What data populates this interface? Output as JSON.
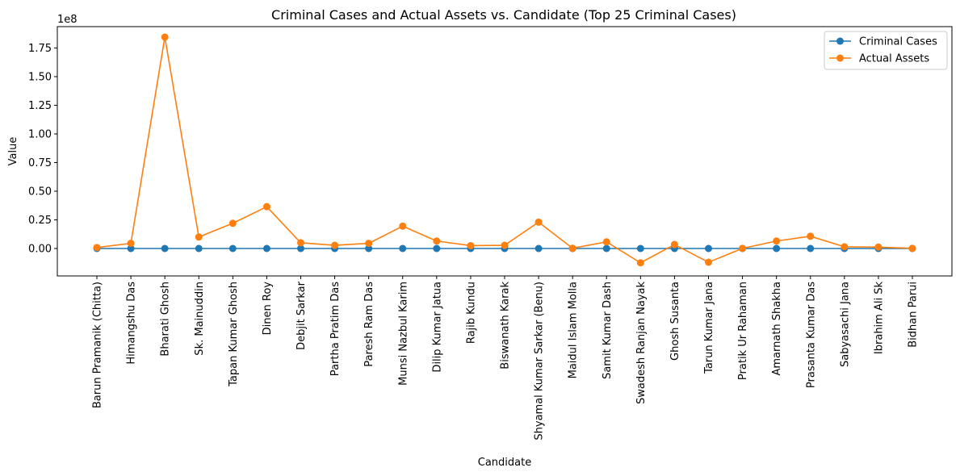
{
  "chart_data": {
    "type": "line",
    "title": "Criminal Cases and Actual Assets vs. Candidate (Top 25 Criminal Cases)",
    "xlabel": "Candidate",
    "ylabel": "Value",
    "y_offset_text": "1e8",
    "categories": [
      "Barun Pramanik (Chitta)",
      "Himangshu Das",
      "Bharati Ghosh",
      "Sk. Mainuddin",
      "Tapan Kumar Ghosh",
      "Dinen Roy",
      "Debjit Sarkar",
      "Partha Pratim Das",
      "Paresh Ram Das",
      "Munsi Nazbul Karim",
      "Dilip Kumar Jatua",
      "Rajib Kundu",
      "Biswanath Karak",
      "Shyamal Kumar Sarkar (Benu)",
      "Maidul Islam Molla",
      "Samit Kumar Dash",
      "Swadesh Ranjan Nayak",
      "Ghosh Susanta",
      "Tarun Kumar Jana",
      "Pratik Ur Rahaman",
      "Amarnath Shakha",
      "Prasanta Kumar Das",
      "Sabyasachi Jana",
      "Ibrahim Ali Sk",
      "Bidhan Parui"
    ],
    "series": [
      {
        "name": "Criminal Cases",
        "color": "#1f77b4",
        "values": [
          0,
          0,
          0,
          0,
          0,
          0,
          0,
          0,
          0,
          0,
          0,
          0,
          0,
          0,
          0,
          0,
          0,
          0,
          0,
          0,
          0,
          0,
          0,
          0,
          0
        ]
      },
      {
        "name": "Actual Assets",
        "color": "#ff7f0e",
        "values": [
          800000,
          4500000,
          184500000,
          10000000,
          22000000,
          36500000,
          5000000,
          2800000,
          4500000,
          19500000,
          6500000,
          2500000,
          2800000,
          23000000,
          200000,
          5800000,
          -12500000,
          3500000,
          -12000000,
          100000,
          6500000,
          10700000,
          1500000,
          1200000,
          100000
        ]
      }
    ],
    "yticks": [
      0,
      25000000,
      50000000,
      75000000,
      100000000,
      125000000,
      150000000,
      175000000
    ],
    "ytick_labels": [
      "0.00",
      "0.25",
      "0.50",
      "0.75",
      "1.00",
      "1.25",
      "1.50",
      "1.75"
    ],
    "ylim": [
      -26000000,
      194000000
    ],
    "grid": false,
    "legend_position": "top-right"
  }
}
